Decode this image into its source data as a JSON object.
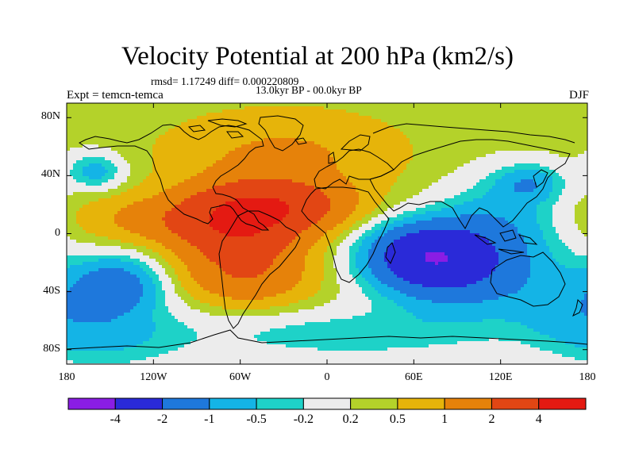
{
  "chart_data": {
    "type": "heatmap",
    "title": "Velocity Potential at 200 hPa (km2/s)",
    "stats_label": "rmsd= 1.17249 diff= 0.000220809",
    "period_label": "13.0kyr BP - 00.0kyr BP",
    "experiment_label": "Expt = temcn-temca",
    "season_label": "DJF",
    "x_range": [
      -180,
      180
    ],
    "y_range": [
      -90,
      90
    ],
    "x_ticks": [
      {
        "value": -180,
        "label": "180"
      },
      {
        "value": -120,
        "label": "120W"
      },
      {
        "value": -60,
        "label": "60W"
      },
      {
        "value": 0,
        "label": "0"
      },
      {
        "value": 60,
        "label": "60E"
      },
      {
        "value": 120,
        "label": "120E"
      },
      {
        "value": 180,
        "label": "180"
      }
    ],
    "y_ticks": [
      {
        "value": 80,
        "label": "80N"
      },
      {
        "value": 40,
        "label": "40N"
      },
      {
        "value": 0,
        "label": "0"
      },
      {
        "value": -40,
        "label": "40S"
      },
      {
        "value": -80,
        "label": "80S"
      }
    ],
    "colorbar": {
      "colors": [
        "#8a1de4",
        "#2a2ad8",
        "#1e78dc",
        "#14b4e6",
        "#1ed2c8",
        "#ececec",
        "#b4d22a",
        "#e6b40a",
        "#e6820a",
        "#e24614",
        "#e41a12"
      ],
      "boundaries": [
        -4,
        -2,
        -1,
        -0.5,
        -0.2,
        0.2,
        0.5,
        1,
        2,
        4
      ],
      "labels": [
        "-4",
        "-2",
        "-1",
        "-0.5",
        "-0.2",
        "0.2",
        "0.5",
        "1",
        "2",
        "4"
      ]
    },
    "background_value": 0.3,
    "anomaly_centers": [
      {
        "lon": -60,
        "lat": 5,
        "value": 3.0,
        "sx": 28,
        "sy": 18
      },
      {
        "lon": -30,
        "lat": 20,
        "value": 2.2,
        "sx": 32,
        "sy": 12
      },
      {
        "lon": -100,
        "lat": 10,
        "value": 1.2,
        "sx": 45,
        "sy": 12
      },
      {
        "lon": -30,
        "lat": 55,
        "value": 0.8,
        "sx": 55,
        "sy": 20
      },
      {
        "lon": -55,
        "lat": -30,
        "value": 1.3,
        "sx": 30,
        "sy": 14
      },
      {
        "lon": 70,
        "lat": -15,
        "value": -3.2,
        "sx": 28,
        "sy": 15
      },
      {
        "lon": 95,
        "lat": -28,
        "value": -1.5,
        "sx": 40,
        "sy": 22
      },
      {
        "lon": 140,
        "lat": 35,
        "value": -1.0,
        "sx": 16,
        "sy": 9
      },
      {
        "lon": 120,
        "lat": 10,
        "value": -0.9,
        "sx": 30,
        "sy": 22
      },
      {
        "lon": -145,
        "lat": -35,
        "value": -1.6,
        "sx": 22,
        "sy": 14
      },
      {
        "lon": -160,
        "lat": 43,
        "value": -1.0,
        "sx": 14,
        "sy": 9
      },
      {
        "lon": 10,
        "lat": -70,
        "value": -0.7,
        "sx": 70,
        "sy": 12
      },
      {
        "lon": -150,
        "lat": -70,
        "value": -0.8,
        "sx": 40,
        "sy": 18
      },
      {
        "lon": 170,
        "lat": -50,
        "value": -0.7,
        "sx": 30,
        "sy": 20
      }
    ]
  }
}
